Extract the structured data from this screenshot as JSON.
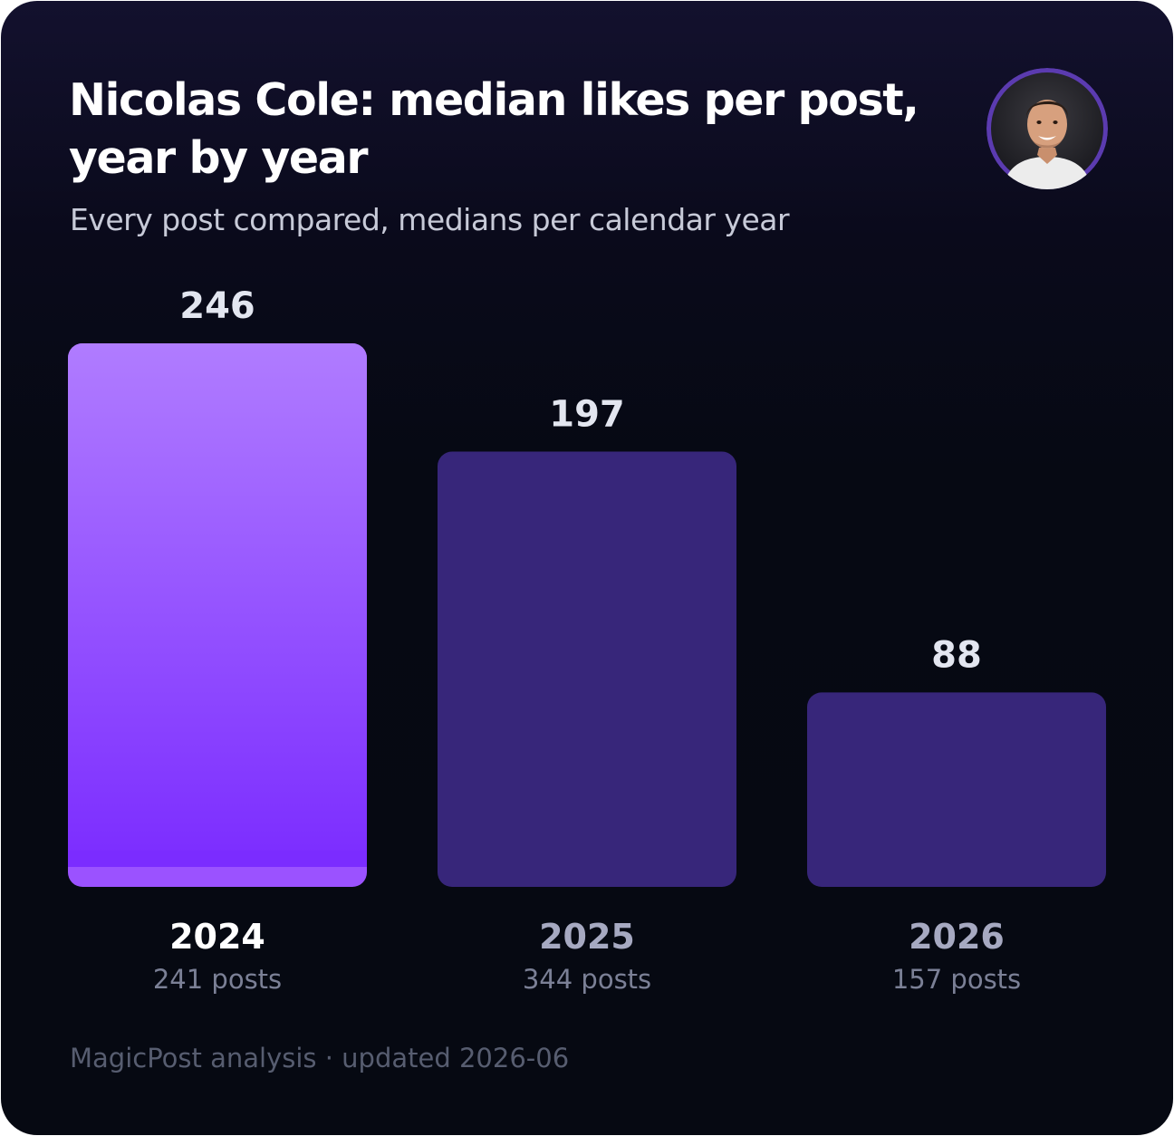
{
  "colors": {
    "highlight_top": "#b07cff",
    "highlight_bottom": "#7b2cff",
    "highlight_base": "#9b52ff",
    "muted_bar": "#37267a",
    "value_label": "#e3e6f0",
    "year_highlight": "#ffffff",
    "year_muted": "#a6a9c1",
    "count_label": "#7b8096"
  },
  "avatar": {
    "icon": "person-avatar-photo"
  },
  "footer": "MagicPost analysis · updated 2026-06",
  "chart_data": {
    "type": "bar",
    "title": "Nicolas Cole: median likes per post, year by year",
    "subtitle": "Every post compared, medians per calendar year",
    "categories": [
      "2024",
      "2025",
      "2026"
    ],
    "values": [
      246,
      197,
      88
    ],
    "value_labels": [
      "246",
      "197",
      "88"
    ],
    "post_counts": [
      "241 posts",
      "344 posts",
      "157 posts"
    ],
    "highlighted_category": "2024",
    "ylim": [
      0,
      246
    ],
    "xlabel": "",
    "ylabel": "",
    "grid": false,
    "legend": "none"
  }
}
